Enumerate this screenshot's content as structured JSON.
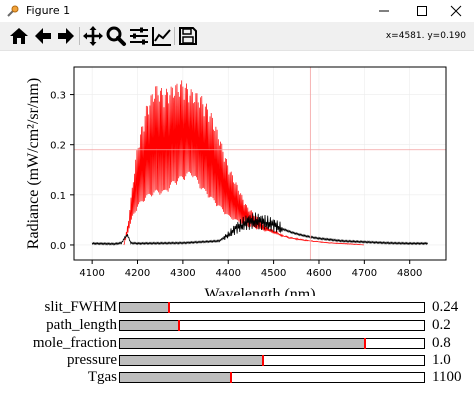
{
  "window": {
    "title": "Figure 1"
  },
  "toolbar": {
    "tools": [
      "home-icon",
      "back-arrow-icon",
      "forward-arrow-icon",
      "pan-icon",
      "zoom-icon",
      "configure-subplots-icon",
      "edit-axis-icon",
      "save-icon"
    ],
    "coords": "x=4581. y=0.190"
  },
  "chart_data": {
    "type": "line",
    "title": "",
    "xlabel": "Wavelength (nm)",
    "ylabel": "Radiance (mW/cm²/sr/nm)",
    "xlim": [
      4060,
      4880
    ],
    "ylim": [
      -0.03,
      0.355
    ],
    "xticks": [
      4100,
      4200,
      4300,
      4400,
      4500,
      4600,
      4700,
      4800
    ],
    "yticks": [
      0.0,
      0.1,
      0.2,
      0.3
    ],
    "xtick_labels": [
      "4100",
      "4200",
      "4300",
      "4400",
      "4500",
      "4600",
      "4700",
      "4800"
    ],
    "ytick_labels": [
      "0.0",
      "0.1",
      "0.2",
      "0.3"
    ],
    "grid": true,
    "crosshair": {
      "x": 4581,
      "y": 0.19
    },
    "series": [
      {
        "color": "#ff0000",
        "envelope_x": [
          4170,
          4180,
          4190,
          4200,
          4220,
          4240,
          4260,
          4280,
          4300,
          4320,
          4340,
          4360,
          4380,
          4400,
          4420,
          4440,
          4460,
          4480,
          4500,
          4520,
          4540,
          4560,
          4580,
          4600,
          4620,
          4640,
          4660,
          4680,
          4700
        ],
        "envelope_hi": [
          0.0,
          0.05,
          0.13,
          0.2,
          0.28,
          0.32,
          0.31,
          0.32,
          0.33,
          0.31,
          0.3,
          0.27,
          0.22,
          0.16,
          0.12,
          0.08,
          0.06,
          0.04,
          0.03,
          0.02,
          0.015,
          0.012,
          0.009,
          0.007,
          0.005,
          0.004,
          0.003,
          0.002,
          0.0
        ],
        "envelope_lo": [
          0.0,
          0.03,
          0.06,
          0.08,
          0.1,
          0.11,
          0.11,
          0.13,
          0.14,
          0.15,
          0.12,
          0.1,
          0.08,
          0.06,
          0.05,
          0.04,
          0.035,
          0.03,
          0.025,
          0.018,
          0.013,
          0.01,
          0.008,
          0.006,
          0.004,
          0.003,
          0.002,
          0.001,
          0.0
        ]
      },
      {
        "color": "#000000",
        "x": [
          4100,
          4150,
          4165,
          4172,
          4178,
          4185,
          4200,
          4300,
          4380,
          4400,
          4420,
          4440,
          4460,
          4480,
          4500,
          4520,
          4540,
          4560,
          4580,
          4600,
          4650,
          4700,
          4750,
          4800,
          4840
        ],
        "y": [
          0.003,
          0.002,
          0.004,
          0.015,
          0.02,
          0.004,
          0.003,
          0.004,
          0.008,
          0.02,
          0.035,
          0.045,
          0.048,
          0.045,
          0.04,
          0.032,
          0.025,
          0.02,
          0.016,
          0.013,
          0.008,
          0.006,
          0.004,
          0.003,
          0.003
        ]
      }
    ]
  },
  "sliders": [
    {
      "label": "slit_FWHM",
      "value": "0.24",
      "fraction": 0.16
    },
    {
      "label": "path_length",
      "value": "0.2",
      "fraction": 0.195
    },
    {
      "label": "mole_fraction",
      "value": "0.8",
      "fraction": 0.805
    },
    {
      "label": "pressure",
      "value": "1.0",
      "fraction": 0.47
    },
    {
      "label": "Tgas",
      "value": "1100",
      "fraction": 0.365
    }
  ]
}
